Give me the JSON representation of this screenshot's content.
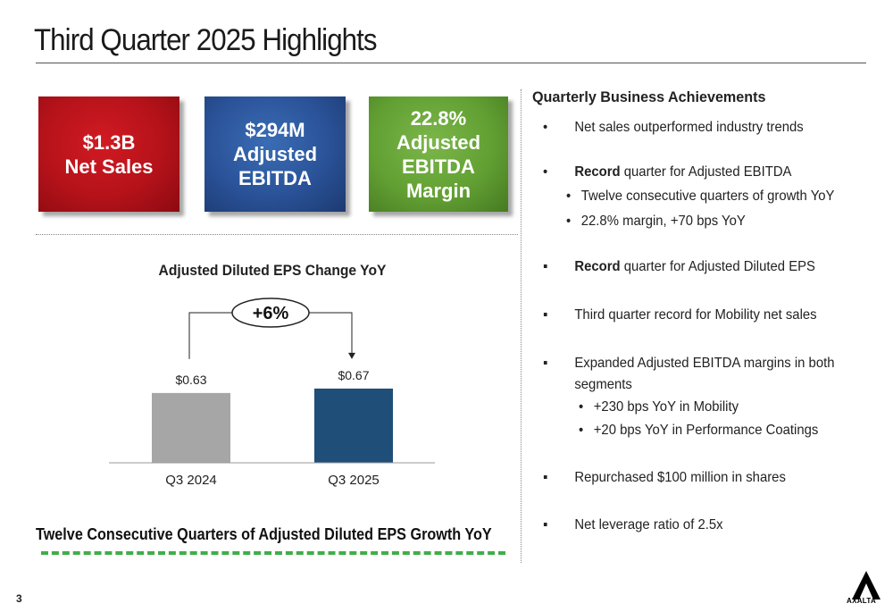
{
  "slide": {
    "title": "Third Quarter 2025 Highlights",
    "page_number": "3"
  },
  "tiles": [
    {
      "line1": "$1.3B",
      "line2": "Net Sales",
      "line3": ""
    },
    {
      "line1": "$294M",
      "line2": "Adjusted",
      "line3": "EBITDA"
    },
    {
      "line1": "22.8%",
      "line2": "Adjusted",
      "line3": "EBITDA Margin"
    }
  ],
  "colors": {
    "tile_red": "#b5121a",
    "tile_blue": "#2a5298",
    "tile_green": "#62a033",
    "bar_prior": "#a6a6a6",
    "bar_current": "#1f4e79",
    "dash_green": "#3fae49"
  },
  "chart_data": {
    "type": "bar",
    "title": "Adjusted Diluted EPS Change YoY",
    "categories": [
      "Q3 2024",
      "Q3 2025"
    ],
    "values": [
      0.63,
      0.67
    ],
    "data_labels": [
      "$0.63",
      "$0.67"
    ],
    "change_label": "+6%",
    "ylim": [
      0,
      1.0
    ],
    "xlabel": "",
    "ylabel": ""
  },
  "footer_claim": "Twelve Consecutive Quarters of Adjusted Diluted EPS Growth YoY",
  "achievements": {
    "heading": "Quarterly Business Achievements",
    "items": [
      {
        "marker": "•",
        "bold": "",
        "text": "Net sales outperformed industry trends"
      },
      {
        "marker": "•",
        "bold": "Record",
        "text": " quarter for Adjusted EBITDA"
      },
      {
        "marker": "•",
        "bold": "",
        "text": "Twelve consecutive quarters of growth YoY"
      },
      {
        "marker": "•",
        "bold": "",
        "text": "22.8% margin, +70 bps YoY"
      },
      {
        "marker": "▪",
        "bold": "Record",
        "text": " quarter for Adjusted Diluted EPS"
      },
      {
        "marker": "▪",
        "bold": "",
        "text": "Third quarter record for Mobility net sales"
      },
      {
        "marker": "▪",
        "bold": "",
        "text": "Expanded Adjusted EBITDA margins in both segments"
      },
      {
        "marker": "•",
        "bold": "",
        "text": "+230 bps YoY in Mobility"
      },
      {
        "marker": "•",
        "bold": "",
        "text": "+20 bps YoY in Performance Coatings"
      },
      {
        "marker": "▪",
        "bold": "",
        "text": "Repurchased $100 million in shares"
      },
      {
        "marker": "▪",
        "bold": "",
        "text": "Net leverage ratio of 2.5x"
      }
    ]
  },
  "logo": {
    "text": "AXALTA",
    "icon": "axalta-logo-icon"
  }
}
